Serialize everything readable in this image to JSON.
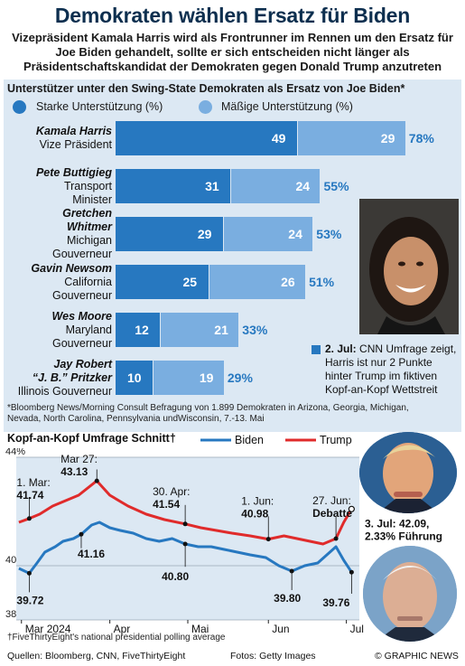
{
  "title": "Demokraten wählen Ersatz für Biden",
  "subtitle": "Vizepräsident Kamala Harris wird als Frontrunner im Rennen um den Ersatz für Joe Biden gehandelt, sollte er sich entscheiden nicht länger als Präsidentschaftskandidat der Demokraten gegen Donald Trump anzutreten",
  "survey": {
    "title": "Unterstützer unter den Swing-State Demokraten als Ersatz von Joe Biden*",
    "legend_strong": "Starke Unterstützung (%)",
    "legend_moderate": "Mäßige Unterstützung (%)",
    "colors": {
      "strong": "#2778c0",
      "moderate": "#7aaee0",
      "panel": "#dce8f3"
    },
    "rows": [
      {
        "name": "Kamala Harris",
        "role": "Vize Präsident",
        "strong": 49,
        "moderate": 29,
        "total": "78%"
      },
      {
        "name": "Pete Buttigieg",
        "role": "Transport Minister",
        "strong": 31,
        "moderate": 24,
        "total": "55%"
      },
      {
        "name": "Gretchen Whitmer",
        "role": "Michigan Gouverneur",
        "strong": 29,
        "moderate": 24,
        "total": "53%"
      },
      {
        "name": "Gavin Newsom",
        "role": "California Gouverneur",
        "strong": 25,
        "moderate": 26,
        "total": "51%"
      },
      {
        "name": "Wes Moore",
        "role": "Maryland Gouverneur",
        "strong": 12,
        "moderate": 21,
        "total": "33%"
      },
      {
        "name": "Jay Robert “J. B.” Pritzker",
        "role": "Illinois Gouverneur",
        "strong": 10,
        "moderate": 19,
        "total": "29%"
      }
    ],
    "name_lines": [
      [
        "Kamala Harris"
      ],
      [
        "Pete Buttigieg"
      ],
      [
        "Gretchen",
        "Whitmer"
      ],
      [
        "Gavin Newsom"
      ],
      [
        "Wes Moore"
      ],
      [
        "Jay Robert",
        "“J. B.” Pritzker"
      ]
    ],
    "role_lines": [
      [
        "Vize Präsident"
      ],
      [
        "Transport",
        "Minister"
      ],
      [
        "Michigan",
        "Gouverneur"
      ],
      [
        "California",
        "Gouverneur"
      ],
      [
        "Maryland",
        "Gouverneur"
      ],
      [
        "Illinois Gouverneur"
      ]
    ],
    "note_date": "2. Jul:",
    "note_text": "CNN Umfrage zeigt, Harris ist nur 2 Punkte hinter Trump im fiktiven Kopf-an-Kopf Wettstreit",
    "footnote": "*Bloomberg News/Morning Consult Befragung von 1.899 Demokraten in Arizona, Georgia, Michigan, Nevada, North Carolina, Pennsylvania undWisconsin, 7.-13. Mai"
  },
  "chart_title": "Kopf-an-Kopf Umfrage Schnitt†",
  "chart_data": {
    "type": "line",
    "title": "Kopf-an-Kopf Umfrage Schnitt†",
    "x_ticks": [
      "Mar 2024",
      "Apr",
      "Mai",
      "Jun",
      "Jul"
    ],
    "ylim": [
      38,
      44
    ],
    "y_ticks": [
      38,
      40,
      44
    ],
    "y_tick_labels": [
      "38",
      "40",
      "44%"
    ],
    "series": [
      {
        "name": "Biden",
        "color": "#2778c0",
        "points": [
          [
            "2024-02-26",
            39.9
          ],
          [
            "2024-03-01",
            39.72
          ],
          [
            "2024-03-04",
            40.1
          ],
          [
            "2024-03-07",
            40.5
          ],
          [
            "2024-03-11",
            40.7
          ],
          [
            "2024-03-14",
            40.9
          ],
          [
            "2024-03-18",
            41.0
          ],
          [
            "2024-03-21",
            41.16
          ],
          [
            "2024-03-25",
            41.5
          ],
          [
            "2024-03-28",
            41.6
          ],
          [
            "2024-04-01",
            41.4
          ],
          [
            "2024-04-05",
            41.3
          ],
          [
            "2024-04-10",
            41.2
          ],
          [
            "2024-04-15",
            41.0
          ],
          [
            "2024-04-20",
            40.9
          ],
          [
            "2024-04-25",
            41.0
          ],
          [
            "2024-04-30",
            40.8
          ],
          [
            "2024-05-05",
            40.7
          ],
          [
            "2024-05-10",
            40.7
          ],
          [
            "2024-05-15",
            40.6
          ],
          [
            "2024-05-20",
            40.5
          ],
          [
            "2024-05-25",
            40.4
          ],
          [
            "2024-05-31",
            40.3
          ],
          [
            "2024-06-05",
            40.0
          ],
          [
            "2024-06-10",
            39.8
          ],
          [
            "2024-06-15",
            40.0
          ],
          [
            "2024-06-20",
            40.1
          ],
          [
            "2024-06-27",
            40.7
          ],
          [
            "2024-06-30",
            40.2
          ],
          [
            "2024-07-03",
            39.76
          ]
        ]
      },
      {
        "name": "Trump",
        "color": "#e02b2b",
        "points": [
          [
            "2024-02-26",
            41.6
          ],
          [
            "2024-03-01",
            41.74
          ],
          [
            "2024-03-05",
            41.9
          ],
          [
            "2024-03-10",
            42.2
          ],
          [
            "2024-03-15",
            42.4
          ],
          [
            "2024-03-20",
            42.6
          ],
          [
            "2024-03-27",
            43.13
          ],
          [
            "2024-04-01",
            42.6
          ],
          [
            "2024-04-08",
            42.2
          ],
          [
            "2024-04-15",
            41.9
          ],
          [
            "2024-04-22",
            41.7
          ],
          [
            "2024-04-30",
            41.54
          ],
          [
            "2024-05-06",
            41.4
          ],
          [
            "2024-05-12",
            41.3
          ],
          [
            "2024-05-18",
            41.2
          ],
          [
            "2024-05-25",
            41.1
          ],
          [
            "2024-06-01",
            40.98
          ],
          [
            "2024-06-07",
            41.1
          ],
          [
            "2024-06-12",
            41.0
          ],
          [
            "2024-06-17",
            40.9
          ],
          [
            "2024-06-22",
            40.8
          ],
          [
            "2024-06-27",
            41.0
          ],
          [
            "2024-06-30",
            41.6
          ],
          [
            "2024-07-03",
            42.09
          ]
        ]
      }
    ],
    "annotations": [
      {
        "label": "1. Mar:",
        "value": "41.74",
        "date": "2024-03-01",
        "y": 41.74
      },
      {
        "label": "Mar 27:",
        "value": "43.13",
        "date": "2024-03-27",
        "y": 43.13
      },
      {
        "label": "30. Apr:",
        "value": "41.54",
        "date": "2024-04-30",
        "y": 41.54
      },
      {
        "label": "1. Jun:",
        "value": "40.98",
        "date": "2024-06-01",
        "y": 40.98
      },
      {
        "label": "27. Jun:",
        "value": "Debatte",
        "date": "2024-06-27",
        "y": 41.0
      },
      {
        "label": "",
        "value": "39.72",
        "date": "2024-03-01",
        "y": 39.72
      },
      {
        "label": "",
        "value": "41.16",
        "date": "2024-03-21",
        "y": 41.16
      },
      {
        "label": "",
        "value": "40.80",
        "date": "2024-04-30",
        "y": 40.8
      },
      {
        "label": "",
        "value": "39.80",
        "date": "2024-06-10",
        "y": 39.8
      },
      {
        "label": "",
        "value": "39.76",
        "date": "2024-07-03",
        "y": 39.76
      }
    ],
    "end_label_1": "3. Jul: 42.09,",
    "end_label_2": "2.33% Führung",
    "footnote_inside": "†FiveThirtyEight's",
    "footnote": "†FiveThirtyEight's national presidential polling average"
  },
  "footer": {
    "sources": "Quellen: Bloomberg, CNN, FiveThirtyEight",
    "photos": "Fotos: Getty Images",
    "credit": "© GRAPHIC NEWS"
  }
}
